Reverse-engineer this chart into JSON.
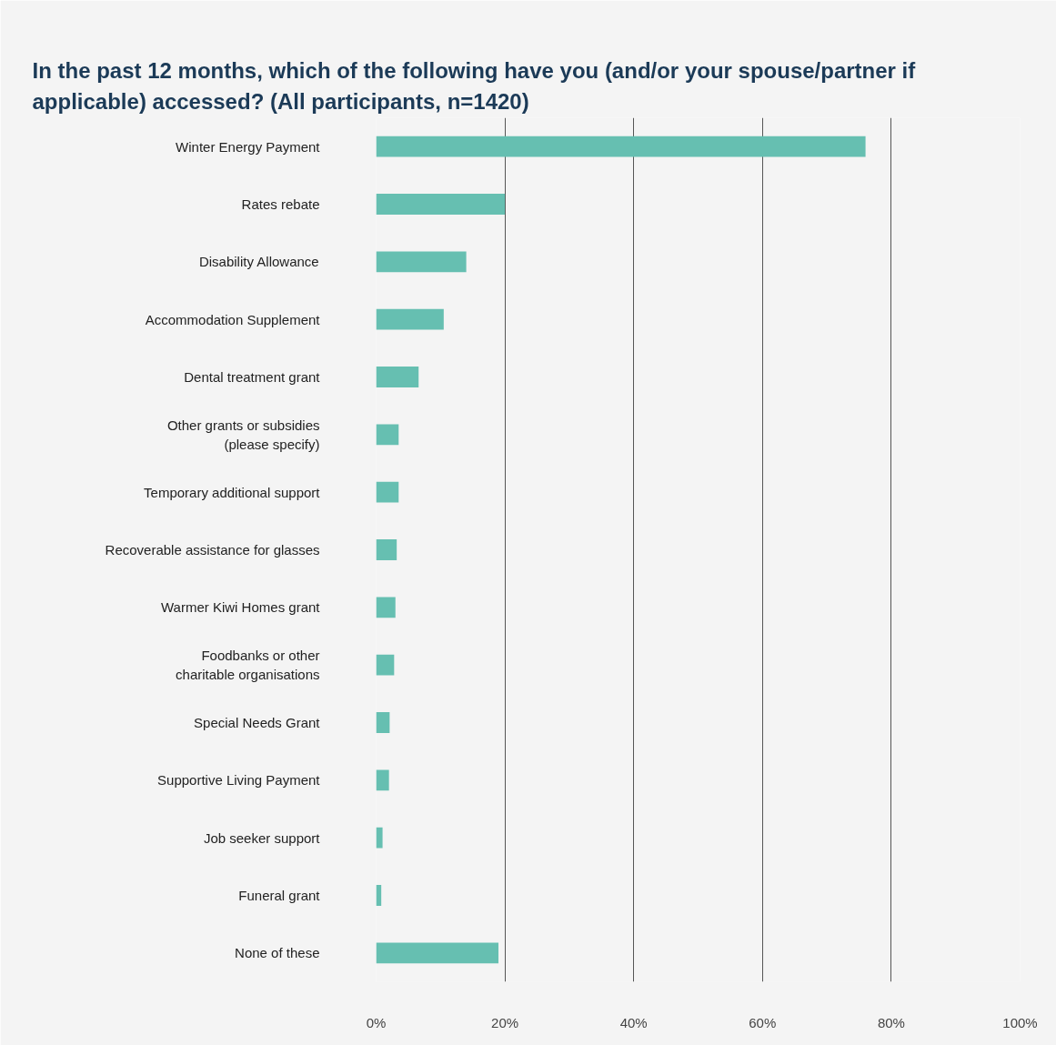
{
  "chart_data": {
    "type": "bar",
    "orientation": "horizontal",
    "title": "In the past 12 months, which of the following have you (and/or your spouse/partner if applicable) accessed? (All participants, n=1420)",
    "categories": [
      "Winter Energy Payment",
      "Rates rebate",
      "Disability Allowance",
      "Accommodation Supplement",
      "Dental treatment grant",
      "Other grants or subsidies\n(please specify)",
      "Temporary additional support",
      "Recoverable assistance for glasses",
      "Warmer Kiwi Homes grant",
      "Foodbanks or other\ncharitable organisations",
      "Special Needs Grant",
      "Supportive Living Payment",
      "Job seeker support",
      "Funeral grant",
      "None of these"
    ],
    "values": [
      76,
      20,
      14,
      10.5,
      6.6,
      3.5,
      3.5,
      3.2,
      3,
      2.8,
      2.1,
      2,
      1,
      0.8,
      19
    ],
    "color": "#66bfb1",
    "xlim": [
      0,
      100
    ],
    "xticks": [
      {
        "value": 0,
        "label": "0%"
      },
      {
        "value": 20,
        "label": "20%"
      },
      {
        "value": 40,
        "label": "40%"
      },
      {
        "value": 60,
        "label": "60%"
      },
      {
        "value": 80,
        "label": "80%"
      },
      {
        "value": 100,
        "label": "100%"
      }
    ],
    "grid": "x"
  }
}
